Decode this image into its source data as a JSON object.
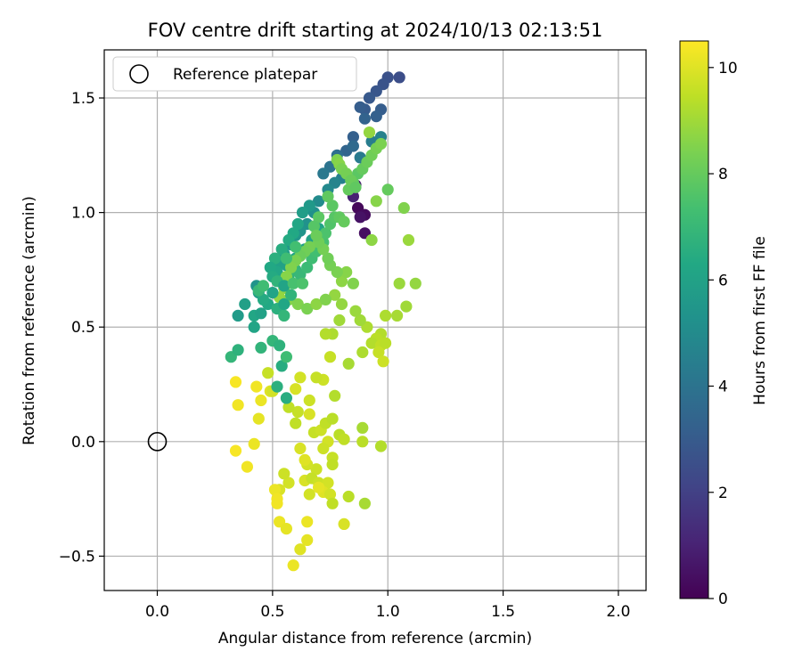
{
  "chart_data": {
    "type": "scatter",
    "title": "FOV centre drift starting at 2024/10/13 02:13:51",
    "xlabel": "Angular distance from reference (arcmin)",
    "ylabel": "Rotation from reference (arcmin)",
    "xlim": [
      -0.23,
      2.12
    ],
    "ylim": [
      -0.65,
      1.71
    ],
    "xticks": [
      0.0,
      0.5,
      1.0,
      1.5,
      2.0
    ],
    "xtick_labels": [
      "0.0",
      "0.5",
      "1.0",
      "1.5",
      "2.0"
    ],
    "yticks": [
      -0.5,
      0.0,
      0.5,
      1.0,
      1.5
    ],
    "ytick_labels": [
      "−0.5",
      "0.0",
      "0.5",
      "1.0",
      "1.5"
    ],
    "grid": true,
    "legend": {
      "placement": "top-left",
      "entries": [
        "Reference platepar"
      ]
    },
    "reference_point": {
      "x": 0.0,
      "y": 0.0
    },
    "colorbar": {
      "label": "Hours from first FF file",
      "range": [
        0,
        10.5
      ],
      "ticks": [
        0,
        2,
        4,
        6,
        8,
        10
      ],
      "tick_labels": [
        "0",
        "2",
        "4",
        "6",
        "8",
        "10"
      ],
      "colormap": "viridis"
    },
    "points": [
      [
        0.87,
        1.02,
        0.2
      ],
      [
        0.9,
        0.99,
        0.3
      ],
      [
        0.9,
        0.91,
        0.4
      ],
      [
        0.88,
        0.98,
        0.5
      ],
      [
        0.86,
        1.12,
        0.8
      ],
      [
        0.85,
        1.07,
        1.0
      ],
      [
        1.05,
        1.59,
        2.5
      ],
      [
        1.0,
        1.59,
        2.6
      ],
      [
        0.98,
        1.56,
        2.7
      ],
      [
        0.95,
        1.53,
        2.8
      ],
      [
        0.92,
        1.5,
        2.9
      ],
      [
        0.9,
        1.45,
        3.0
      ],
      [
        0.88,
        1.46,
        3.1
      ],
      [
        0.97,
        1.45,
        3.1
      ],
      [
        0.95,
        1.42,
        3.2
      ],
      [
        0.9,
        1.41,
        3.3
      ],
      [
        0.85,
        1.33,
        3.2
      ],
      [
        0.82,
        1.27,
        3.4
      ],
      [
        0.85,
        1.29,
        3.6
      ],
      [
        0.78,
        1.25,
        3.8
      ],
      [
        0.75,
        1.2,
        4.0
      ],
      [
        0.72,
        1.17,
        4.2
      ],
      [
        0.93,
        1.31,
        4.4
      ],
      [
        0.97,
        1.33,
        4.6
      ],
      [
        0.88,
        1.24,
        4.3
      ],
      [
        0.8,
        1.15,
        4.5
      ],
      [
        0.77,
        1.13,
        4.7
      ],
      [
        0.74,
        1.1,
        4.9
      ],
      [
        0.7,
        1.05,
        5.0
      ],
      [
        0.68,
        1.0,
        5.2
      ],
      [
        0.65,
        0.95,
        5.3
      ],
      [
        0.62,
        0.92,
        5.4
      ],
      [
        0.6,
        0.9,
        5.5
      ],
      [
        0.58,
        0.86,
        5.6
      ],
      [
        0.55,
        0.82,
        5.8
      ],
      [
        0.53,
        0.78,
        6.0
      ],
      [
        0.52,
        0.74,
        6.2
      ],
      [
        0.56,
        0.77,
        6.0
      ],
      [
        0.6,
        0.8,
        6.1
      ],
      [
        0.64,
        0.84,
        5.9
      ],
      [
        0.67,
        0.88,
        6.0
      ],
      [
        0.7,
        0.93,
        6.1
      ],
      [
        0.66,
        1.03,
        5.6
      ],
      [
        0.63,
        1.0,
        5.8
      ],
      [
        0.61,
        0.95,
        6.2
      ],
      [
        0.59,
        0.91,
        6.3
      ],
      [
        0.57,
        0.88,
        6.4
      ],
      [
        0.54,
        0.84,
        6.5
      ],
      [
        0.51,
        0.8,
        6.6
      ],
      [
        0.49,
        0.76,
        6.3
      ],
      [
        0.5,
        0.72,
        6.4
      ],
      [
        0.53,
        0.7,
        6.7
      ],
      [
        0.57,
        0.72,
        6.8
      ],
      [
        0.6,
        0.75,
        6.9
      ],
      [
        0.62,
        0.73,
        7.0
      ],
      [
        0.65,
        0.76,
        7.1
      ],
      [
        0.67,
        0.8,
        7.2
      ],
      [
        0.69,
        0.83,
        7.3
      ],
      [
        0.72,
        0.87,
        7.4
      ],
      [
        0.73,
        0.91,
        7.5
      ],
      [
        0.75,
        0.95,
        7.6
      ],
      [
        0.77,
        0.98,
        7.7
      ],
      [
        0.76,
        1.03,
        7.8
      ],
      [
        0.74,
        1.07,
        7.9
      ],
      [
        0.7,
        0.98,
        7.8
      ],
      [
        0.68,
        0.94,
        7.7
      ],
      [
        0.79,
        0.98,
        7.9
      ],
      [
        0.81,
        0.96,
        8.0
      ],
      [
        0.83,
        1.1,
        8.0
      ],
      [
        0.85,
        1.13,
        7.9
      ],
      [
        0.87,
        1.17,
        7.8
      ],
      [
        0.89,
        1.19,
        8.0
      ],
      [
        0.91,
        1.22,
        8.1
      ],
      [
        0.93,
        1.25,
        8.2
      ],
      [
        0.95,
        1.28,
        8.3
      ],
      [
        0.97,
        1.3,
        8.4
      ],
      [
        0.78,
        1.23,
        8.5
      ],
      [
        0.79,
        1.21,
        8.6
      ],
      [
        0.8,
        1.19,
        8.4
      ],
      [
        0.82,
        1.17,
        8.3
      ],
      [
        0.84,
        1.14,
        8.1
      ],
      [
        0.86,
        1.11,
        7.9
      ],
      [
        0.92,
        1.35,
        8.8
      ],
      [
        0.95,
        1.05,
        8.6
      ],
      [
        0.93,
        0.88,
        8.7
      ],
      [
        1.0,
        1.1,
        8.0
      ],
      [
        1.07,
        1.02,
        8.5
      ],
      [
        1.09,
        0.88,
        8.9
      ],
      [
        1.12,
        0.69,
        8.8
      ],
      [
        1.05,
        0.69,
        8.9
      ],
      [
        1.08,
        0.59,
        9.0
      ],
      [
        1.04,
        0.55,
        9.1
      ],
      [
        0.99,
        0.55,
        9.2
      ],
      [
        0.97,
        0.47,
        9.3
      ],
      [
        0.95,
        0.45,
        9.4
      ],
      [
        0.93,
        0.43,
        9.3
      ],
      [
        0.97,
        0.42,
        9.5
      ],
      [
        0.99,
        0.43,
        9.4
      ],
      [
        0.96,
        0.39,
        9.6
      ],
      [
        0.98,
        0.35,
        9.7
      ],
      [
        0.89,
        0.39,
        9.2
      ],
      [
        0.83,
        0.34,
        9.1
      ],
      [
        0.91,
        0.5,
        9.2
      ],
      [
        0.88,
        0.53,
        9.0
      ],
      [
        0.86,
        0.57,
        8.9
      ],
      [
        0.8,
        0.6,
        8.8
      ],
      [
        0.77,
        0.64,
        8.8
      ],
      [
        0.79,
        0.53,
        9.0
      ],
      [
        0.8,
        0.7,
        8.7
      ],
      [
        0.82,
        0.74,
        8.6
      ],
      [
        0.85,
        0.69,
        8.5
      ],
      [
        0.78,
        0.74,
        8.4
      ],
      [
        0.75,
        0.77,
        8.3
      ],
      [
        0.74,
        0.8,
        8.2
      ],
      [
        0.72,
        0.84,
        8.3
      ],
      [
        0.7,
        0.87,
        8.2
      ],
      [
        0.69,
        0.9,
        8.1
      ],
      [
        0.66,
        0.85,
        8.3
      ],
      [
        0.64,
        0.83,
        8.2
      ],
      [
        0.62,
        0.81,
        8.1
      ],
      [
        0.6,
        0.79,
        8.4
      ],
      [
        0.58,
        0.76,
        8.5
      ],
      [
        0.56,
        0.72,
        8.6
      ],
      [
        0.55,
        0.67,
        8.7
      ],
      [
        0.53,
        0.63,
        8.8
      ],
      [
        0.57,
        0.62,
        8.6
      ],
      [
        0.61,
        0.6,
        8.5
      ],
      [
        0.65,
        0.58,
        8.4
      ],
      [
        0.69,
        0.6,
        8.7
      ],
      [
        0.73,
        0.62,
        8.5
      ],
      [
        0.76,
        0.47,
        9.2
      ],
      [
        0.73,
        0.47,
        9.3
      ],
      [
        0.75,
        0.37,
        9.6
      ],
      [
        0.72,
        0.27,
        9.7
      ],
      [
        0.69,
        0.28,
        9.6
      ],
      [
        0.62,
        0.28,
        9.8
      ],
      [
        0.6,
        0.23,
        9.9
      ],
      [
        0.66,
        0.18,
        9.7
      ],
      [
        0.66,
        0.12,
        9.9
      ],
      [
        0.61,
        0.13,
        9.6
      ],
      [
        0.6,
        0.08,
        9.5
      ],
      [
        0.68,
        0.04,
        9.6
      ],
      [
        0.71,
        0.05,
        9.7
      ],
      [
        0.73,
        0.08,
        9.5
      ],
      [
        0.76,
        0.1,
        9.4
      ],
      [
        0.77,
        0.2,
        9.3
      ],
      [
        0.79,
        0.03,
        9.4
      ],
      [
        0.81,
        0.01,
        9.5
      ],
      [
        0.74,
        0.0,
        9.8
      ],
      [
        0.72,
        -0.03,
        9.7
      ],
      [
        0.76,
        -0.07,
        9.6
      ],
      [
        0.76,
        -0.1,
        9.5
      ],
      [
        0.69,
        -0.12,
        9.7
      ],
      [
        0.65,
        -0.1,
        9.8
      ],
      [
        0.64,
        -0.08,
        10.0
      ],
      [
        0.62,
        -0.03,
        9.9
      ],
      [
        0.64,
        -0.17,
        9.9
      ],
      [
        0.66,
        -0.23,
        9.8
      ],
      [
        0.67,
        -0.16,
        9.6
      ],
      [
        0.7,
        -0.18,
        9.7
      ],
      [
        0.72,
        -0.2,
        9.6
      ],
      [
        0.74,
        -0.18,
        9.8
      ],
      [
        0.72,
        -0.22,
        10.0
      ],
      [
        0.7,
        -0.2,
        10.1
      ],
      [
        0.75,
        -0.23,
        9.8
      ],
      [
        0.76,
        -0.27,
        9.5
      ],
      [
        0.83,
        -0.24,
        9.4
      ],
      [
        0.9,
        -0.27,
        9.1
      ],
      [
        0.81,
        -0.36,
        9.9
      ],
      [
        0.65,
        -0.35,
        10.2
      ],
      [
        0.65,
        -0.43,
        10.1
      ],
      [
        0.62,
        -0.47,
        10.0
      ],
      [
        0.59,
        -0.54,
        10.2
      ],
      [
        0.57,
        -0.18,
        9.8
      ],
      [
        0.55,
        -0.14,
        9.7
      ],
      [
        0.53,
        -0.21,
        9.9
      ],
      [
        0.51,
        -0.21,
        10.2
      ],
      [
        0.52,
        -0.27,
        10.3
      ],
      [
        0.53,
        -0.35,
        10.2
      ],
      [
        0.56,
        -0.38,
        10.1
      ],
      [
        0.52,
        -0.25,
        10.3
      ],
      [
        0.97,
        -0.02,
        9.3
      ],
      [
        0.89,
        0.06,
        9.1
      ],
      [
        0.89,
        0.0,
        9.4
      ],
      [
        0.42,
        -0.01,
        10.2
      ],
      [
        0.39,
        -0.11,
        10.3
      ],
      [
        0.34,
        -0.04,
        10.4
      ],
      [
        0.35,
        0.16,
        10.3
      ],
      [
        0.34,
        0.26,
        10.4
      ],
      [
        0.44,
        0.1,
        10.1
      ],
      [
        0.45,
        0.18,
        10.2
      ],
      [
        0.43,
        0.24,
        10.3
      ],
      [
        0.49,
        0.22,
        10.0
      ],
      [
        0.48,
        0.3,
        9.6
      ],
      [
        0.5,
        0.22,
        9.8
      ],
      [
        0.57,
        0.15,
        9.5
      ],
      [
        0.52,
        0.24,
        6.6
      ],
      [
        0.56,
        0.19,
        6.5
      ],
      [
        0.45,
        0.41,
        6.8
      ],
      [
        0.5,
        0.44,
        6.9
      ],
      [
        0.53,
        0.42,
        6.7
      ],
      [
        0.54,
        0.33,
        6.5
      ],
      [
        0.56,
        0.37,
        7.2
      ],
      [
        0.32,
        0.37,
        6.9
      ],
      [
        0.35,
        0.4,
        6.7
      ],
      [
        0.35,
        0.55,
        5.7
      ],
      [
        0.38,
        0.6,
        5.9
      ],
      [
        0.42,
        0.5,
        6.1
      ],
      [
        0.42,
        0.55,
        6.2
      ],
      [
        0.45,
        0.56,
        6.0
      ],
      [
        0.48,
        0.6,
        6.3
      ],
      [
        0.44,
        0.65,
        5.8
      ],
      [
        0.43,
        0.68,
        5.4
      ],
      [
        0.46,
        0.62,
        6.4
      ],
      [
        0.5,
        0.65,
        6.1
      ],
      [
        0.52,
        0.58,
        6.6
      ],
      [
        0.55,
        0.55,
        6.9
      ],
      [
        0.55,
        0.6,
        6.2
      ],
      [
        0.58,
        0.64,
        6.8
      ],
      [
        0.44,
        0.66,
        7.0
      ],
      [
        0.46,
        0.68,
        7.2
      ],
      [
        0.52,
        0.7,
        6.8
      ],
      [
        0.55,
        0.68,
        6.1
      ],
      [
        0.59,
        0.69,
        7.4
      ],
      [
        0.63,
        0.69,
        7.5
      ],
      [
        0.56,
        0.8,
        7.2
      ],
      [
        0.6,
        0.85,
        7.3
      ]
    ]
  }
}
